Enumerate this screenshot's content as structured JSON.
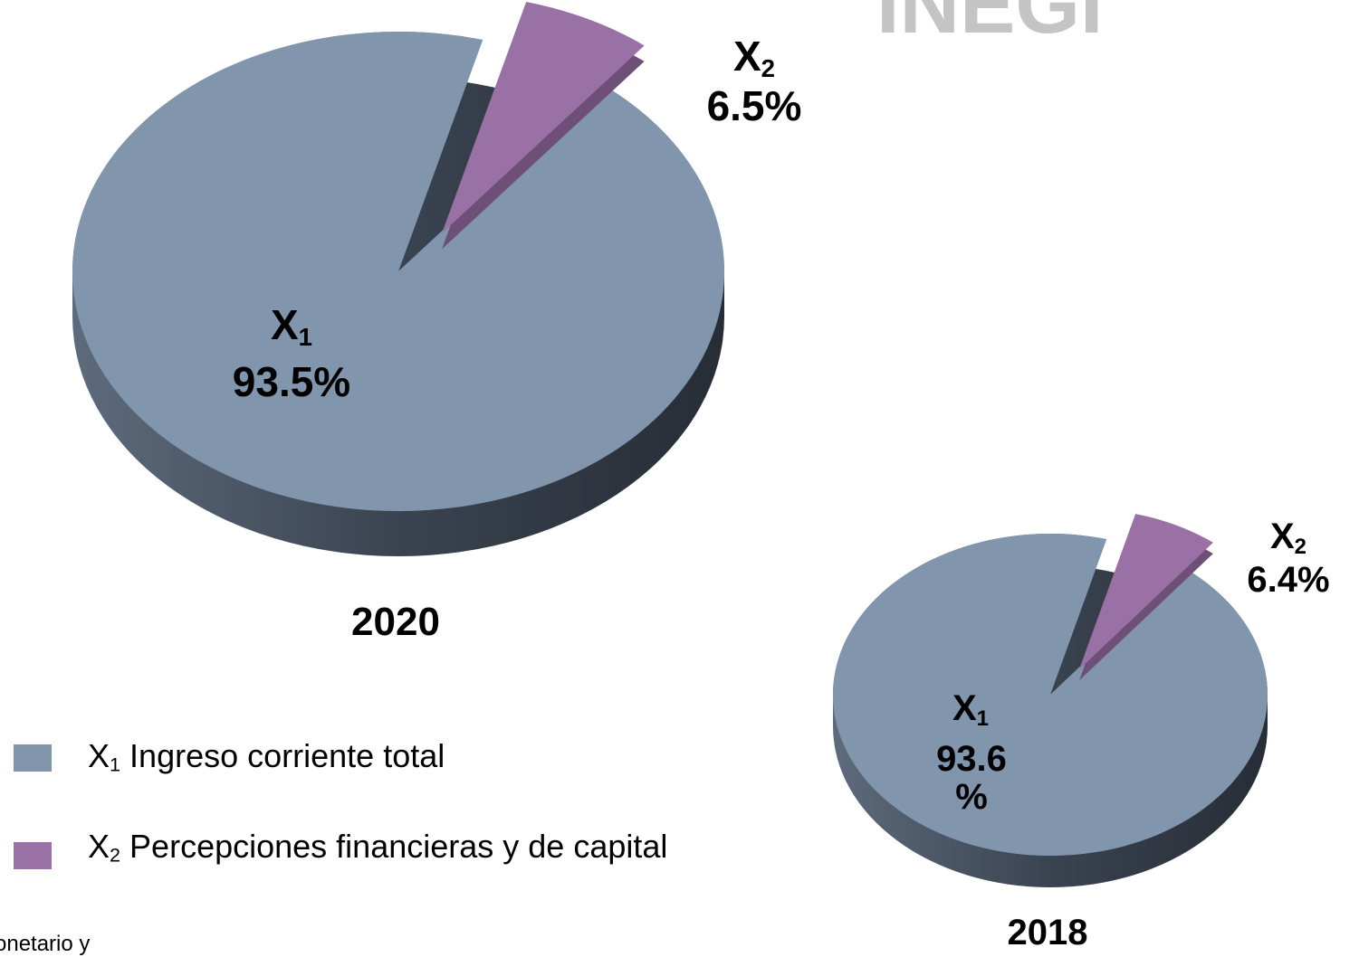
{
  "logo_text": "INEGI",
  "footer": "onetario y",
  "legend": [
    {
      "symbol": "X",
      "subscript": "1",
      "label": "Ingreso corriente total"
    },
    {
      "symbol": "X",
      "subscript": "2",
      "label": "Percepciones financieras y de capital"
    }
  ],
  "chart_data": [
    {
      "type": "pie",
      "title": "2020",
      "values": [
        93.5,
        6.5
      ],
      "value_labels": [
        "93.5%",
        "6.5%"
      ],
      "colors": [
        "#8195ad",
        "#9a71a5"
      ],
      "explode": [
        false,
        true
      ]
    },
    {
      "type": "pie",
      "title": "2018",
      "values": [
        93.6,
        6.4
      ],
      "value_labels": [
        "93.6 %",
        "6.4%"
      ],
      "colors": [
        "#8195ad",
        "#9a71a5"
      ],
      "explode": [
        false,
        true
      ]
    }
  ]
}
